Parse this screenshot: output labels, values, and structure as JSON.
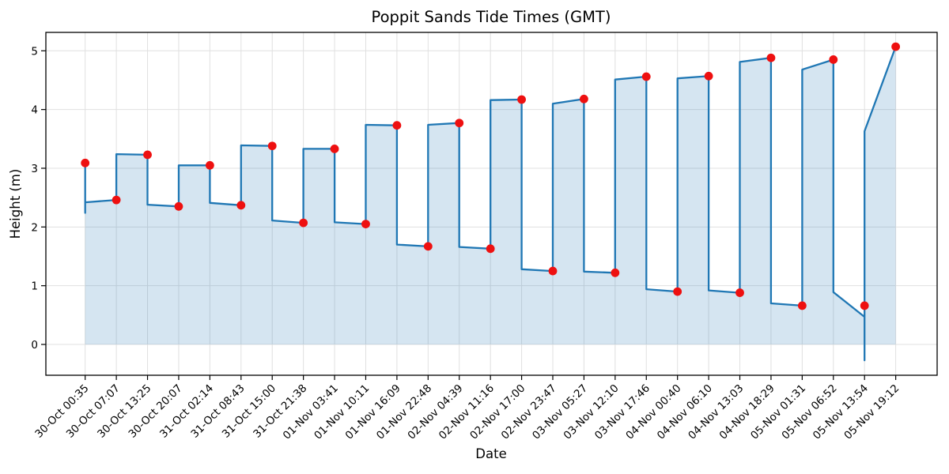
{
  "chart_data": {
    "type": "line",
    "title": "Poppit Sands Tide Times (GMT)",
    "xlabel": "Date",
    "ylabel": "Height (m)",
    "grid": true,
    "legend": false,
    "ylim": [
      -0.53,
      5.31
    ],
    "yticks": [
      0,
      1,
      2,
      3,
      4,
      5
    ],
    "categories": [
      "30-Oct 00:35",
      "30-Oct 07:07",
      "30-Oct 13:25",
      "30-Oct 20:07",
      "31-Oct 02:14",
      "31-Oct 08:43",
      "31-Oct 15:00",
      "31-Oct 21:38",
      "01-Nov 03:41",
      "01-Nov 10:11",
      "01-Nov 16:09",
      "01-Nov 22:48",
      "02-Nov 04:39",
      "02-Nov 11:16",
      "02-Nov 17:00",
      "02-Nov 23:47",
      "03-Nov 05:27",
      "03-Nov 12:10",
      "03-Nov 17:46",
      "04-Nov 00:40",
      "04-Nov 06:10",
      "04-Nov 13:03",
      "04-Nov 18:29",
      "05-Nov 01:31",
      "05-Nov 06:52",
      "05-Nov 13:54",
      "05-Nov 19:12"
    ],
    "series": [
      {
        "name": "tide-height-markers",
        "marker": "red-dot",
        "values": [
          3.09,
          2.46,
          3.23,
          2.35,
          3.05,
          2.37,
          3.38,
          2.07,
          3.33,
          2.05,
          3.73,
          1.67,
          3.77,
          1.63,
          4.17,
          1.25,
          4.18,
          1.22,
          4.56,
          0.9,
          4.57,
          0.88,
          4.88,
          0.66,
          4.85,
          0.66,
          5.07
        ]
      }
    ],
    "line_path": [
      [
        0,
        2.24
      ],
      [
        0,
        3.09
      ],
      [
        0,
        2.42
      ],
      [
        1,
        2.46
      ],
      [
        1,
        3.24
      ],
      [
        2,
        3.23
      ],
      [
        2,
        2.38
      ],
      [
        3,
        2.35
      ],
      [
        3,
        3.05
      ],
      [
        4,
        3.05
      ],
      [
        4,
        2.41
      ],
      [
        5,
        2.37
      ],
      [
        5,
        3.39
      ],
      [
        6,
        3.38
      ],
      [
        6,
        2.11
      ],
      [
        7,
        2.07
      ],
      [
        7,
        3.33
      ],
      [
        8,
        3.33
      ],
      [
        8,
        2.08
      ],
      [
        9,
        2.05
      ],
      [
        9,
        3.74
      ],
      [
        10,
        3.73
      ],
      [
        10,
        1.7
      ],
      [
        11,
        1.67
      ],
      [
        11,
        3.74
      ],
      [
        12,
        3.77
      ],
      [
        12,
        1.66
      ],
      [
        13,
        1.63
      ],
      [
        13,
        4.16
      ],
      [
        14,
        4.17
      ],
      [
        14,
        1.28
      ],
      [
        15,
        1.25
      ],
      [
        15,
        4.1
      ],
      [
        16,
        4.18
      ],
      [
        16,
        1.24
      ],
      [
        17,
        1.22
      ],
      [
        17,
        4.51
      ],
      [
        18,
        4.56
      ],
      [
        18,
        0.94
      ],
      [
        19,
        0.9
      ],
      [
        19,
        4.53
      ],
      [
        20,
        4.57
      ],
      [
        20,
        0.92
      ],
      [
        21,
        0.88
      ],
      [
        21,
        4.81
      ],
      [
        22,
        4.88
      ],
      [
        22,
        0.7
      ],
      [
        23,
        0.66
      ],
      [
        23,
        4.68
      ],
      [
        24,
        4.85
      ],
      [
        24,
        0.89
      ],
      [
        25,
        0.47
      ],
      [
        25,
        -0.27
      ],
      [
        25,
        3.63
      ],
      [
        26,
        5.07
      ]
    ],
    "colors": {
      "line": "#1f77b4",
      "fill": "rgba(31,119,180,0.19)",
      "marker": "#ee1010",
      "grid": "#e0e0e0",
      "spine": "#000000",
      "text": "#000000"
    }
  }
}
